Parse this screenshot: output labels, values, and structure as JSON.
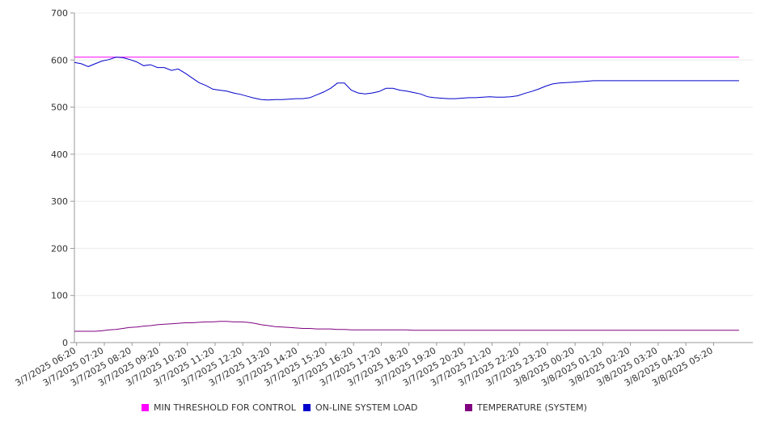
{
  "chart_data": {
    "type": "line",
    "title": "",
    "xlabel": "",
    "ylabel": "",
    "ylim": [
      0,
      700
    ],
    "yticks": [
      0,
      100,
      200,
      300,
      400,
      500,
      600,
      700
    ],
    "grid": true,
    "legend_position": "bottom",
    "xtick_labels": [
      "3/7/2025 06:20",
      "3/7/2025 07:20",
      "3/7/2025 08:20",
      "3/7/2025 09:20",
      "3/7/2025 10:20",
      "3/7/2025 11:20",
      "3/7/2025 12:20",
      "3/7/2025 13:20",
      "3/7/2025 14:20",
      "3/7/2025 15:20",
      "3/7/2025 16:20",
      "3/7/2025 17:20",
      "3/7/2025 18:20",
      "3/7/2025 19:20",
      "3/7/2025 20:20",
      "3/7/2025 21:20",
      "3/7/2025 22:20",
      "3/7/2025 23:20",
      "3/8/2025 00:20",
      "3/8/2025 01:20",
      "3/8/2025 02:20",
      "3/8/2025 03:20",
      "3/8/2025 04:20",
      "3/8/2025 05:20"
    ],
    "x_hours": [
      0,
      0.25,
      0.5,
      0.75,
      1,
      1.25,
      1.5,
      1.75,
      2,
      2.25,
      2.5,
      2.75,
      3,
      3.25,
      3.5,
      3.75,
      4,
      4.25,
      4.5,
      4.75,
      5,
      5.25,
      5.5,
      5.75,
      6,
      6.25,
      6.5,
      6.75,
      7,
      7.25,
      7.5,
      7.75,
      8,
      8.25,
      8.5,
      8.75,
      9,
      9.25,
      9.5,
      9.75,
      10,
      10.25,
      10.5,
      10.75,
      11,
      11.25,
      11.5,
      11.75,
      12,
      12.25,
      12.5,
      12.75,
      13,
      13.25,
      13.5,
      13.75,
      14,
      14.25,
      14.5,
      14.75,
      15,
      15.25,
      15.5,
      15.75,
      16,
      16.25,
      16.5,
      16.75,
      17,
      17.25,
      17.5,
      17.75,
      18,
      18.25,
      18.5,
      18.75,
      19,
      19.25,
      19.5,
      19.75,
      20,
      20.25,
      20.5,
      20.75,
      21,
      21.25,
      21.5,
      21.75,
      22,
      22.25,
      22.5,
      22.75,
      23,
      23.25,
      23.5,
      23.75,
      24
    ],
    "series": [
      {
        "name": "MIN THRESHOLD FOR CONTROL",
        "color": "#ff00ff",
        "values": [
          606,
          606,
          606,
          606,
          606,
          606,
          606,
          606,
          606,
          606,
          606,
          606,
          606,
          606,
          606,
          606,
          606,
          606,
          606,
          606,
          606,
          606,
          606,
          606,
          606,
          606,
          606,
          606,
          606,
          606,
          606,
          606,
          606,
          606,
          606,
          606,
          606,
          606,
          606,
          606,
          606,
          606,
          606,
          606,
          606,
          606,
          606,
          606,
          606,
          606,
          606,
          606,
          606,
          606,
          606,
          606,
          606,
          606,
          606,
          606,
          606,
          606,
          606,
          606,
          606,
          606,
          606,
          606,
          606,
          606,
          606,
          606,
          606,
          606,
          606,
          606,
          606,
          606,
          606,
          606,
          606,
          606,
          606,
          606,
          606,
          606,
          606,
          606,
          606,
          606,
          606,
          606,
          606,
          606,
          606,
          606,
          606
        ]
      },
      {
        "name": "ON-LINE SYSTEM LOAD",
        "color": "#0000cc",
        "values": [
          595,
          592,
          586,
          592,
          598,
          601,
          606,
          605,
          601,
          596,
          588,
          590,
          584,
          584,
          578,
          581,
          572,
          562,
          552,
          546,
          538,
          536,
          534,
          530,
          527,
          523,
          519,
          516,
          515,
          516,
          516,
          517,
          518,
          518,
          520,
          526,
          532,
          540,
          551,
          551,
          536,
          530,
          528,
          530,
          533,
          540,
          540,
          536,
          534,
          531,
          528,
          522,
          520,
          519,
          518,
          518,
          519,
          520,
          520,
          521,
          522,
          521,
          521,
          522,
          524,
          529,
          533,
          538,
          544,
          549,
          551,
          552,
          553,
          554,
          555,
          556,
          556,
          556,
          556,
          556,
          556,
          556,
          556,
          556,
          556,
          556,
          556,
          556,
          556,
          556,
          556,
          556,
          556,
          556,
          556,
          556,
          556
        ]
      },
      {
        "name": "TEMPERATURE (SYSTEM)",
        "color": "#800080",
        "values": [
          24,
          24,
          24,
          24,
          25,
          27,
          28,
          30,
          32,
          33,
          35,
          36,
          38,
          39,
          40,
          41,
          42,
          42,
          43,
          44,
          44,
          45,
          45,
          44,
          44,
          43,
          41,
          38,
          36,
          34,
          33,
          32,
          31,
          30,
          30,
          29,
          29,
          29,
          28,
          28,
          27,
          27,
          27,
          27,
          27,
          27,
          27,
          27,
          27,
          26,
          26,
          26,
          26,
          26,
          26,
          26,
          26,
          26,
          26,
          26,
          26,
          26,
          26,
          26,
          26,
          26,
          26,
          26,
          26,
          26,
          26,
          26,
          26,
          26,
          26,
          26,
          26,
          26,
          26,
          26,
          26,
          26,
          26,
          26,
          26,
          26,
          26,
          26,
          26,
          26,
          26,
          26,
          26,
          26,
          26,
          26,
          26
        ]
      }
    ]
  }
}
